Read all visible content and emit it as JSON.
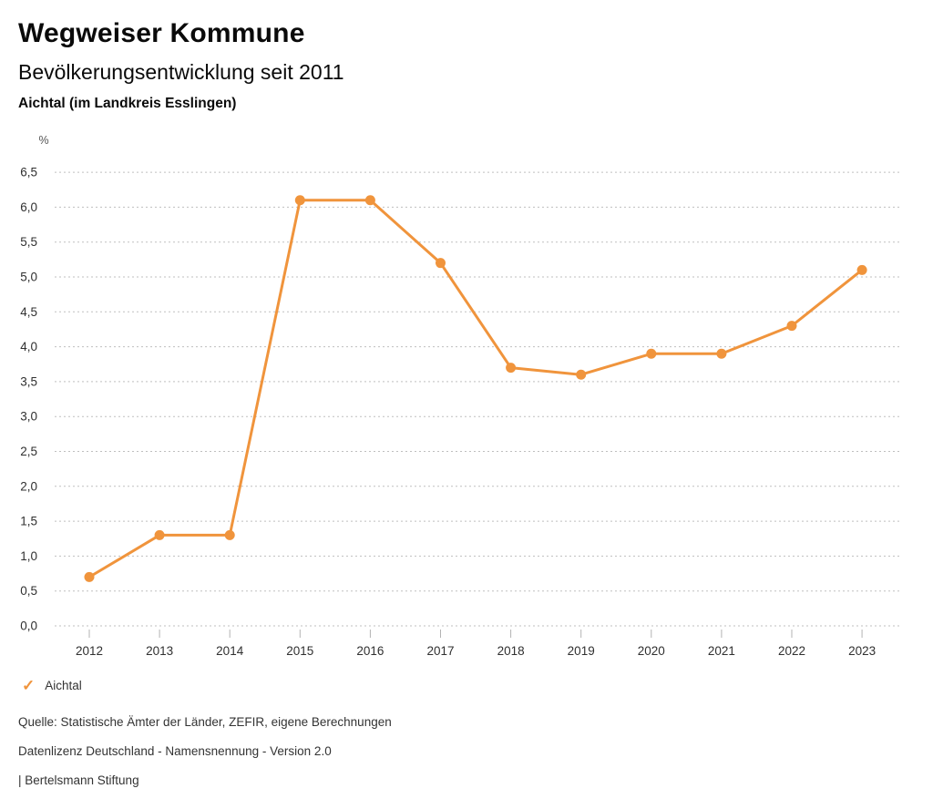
{
  "header": {
    "title": "Wegweiser Kommune",
    "subtitle": "Bevölkerungsentwicklung seit 2011",
    "region": "Aichtal (im Landkreis Esslingen)"
  },
  "chart_data": {
    "type": "line",
    "title": "Bevölkerungsentwicklung seit 2011",
    "region": "Aichtal (im Landkreis Esslingen)",
    "unit_label": "%",
    "categories": [
      "2012",
      "2013",
      "2014",
      "2015",
      "2016",
      "2017",
      "2018",
      "2019",
      "2020",
      "2021",
      "2022",
      "2023"
    ],
    "series": [
      {
        "name": "Aichtal",
        "values": [
          0.7,
          1.3,
          1.3,
          6.1,
          6.1,
          5.2,
          3.7,
          3.6,
          3.9,
          3.9,
          4.3,
          5.1
        ],
        "color": "#F0943C"
      }
    ],
    "ylim": [
      0,
      6.5
    ],
    "y_tick_step": 0.5,
    "y_tick_labels": [
      "0,0",
      "0,5",
      "1,0",
      "1,5",
      "2,0",
      "2,5",
      "3,0",
      "3,5",
      "4,0",
      "4,5",
      "5,0",
      "5,5",
      "6,0",
      "6,5"
    ],
    "grid": "dotted-horizontal",
    "legend_position": "bottom-left"
  },
  "legend": {
    "items": [
      {
        "label": "Aichtal",
        "marker": "check-icon",
        "color": "#F0943C"
      }
    ]
  },
  "footer": {
    "source": "Quelle: Statistische Ämter der Länder, ZEFIR, eigene Berechnungen",
    "license": "Datenlizenz Deutschland - Namensnennung - Version 2.0",
    "attribution": "| Bertelsmann Stiftung"
  }
}
